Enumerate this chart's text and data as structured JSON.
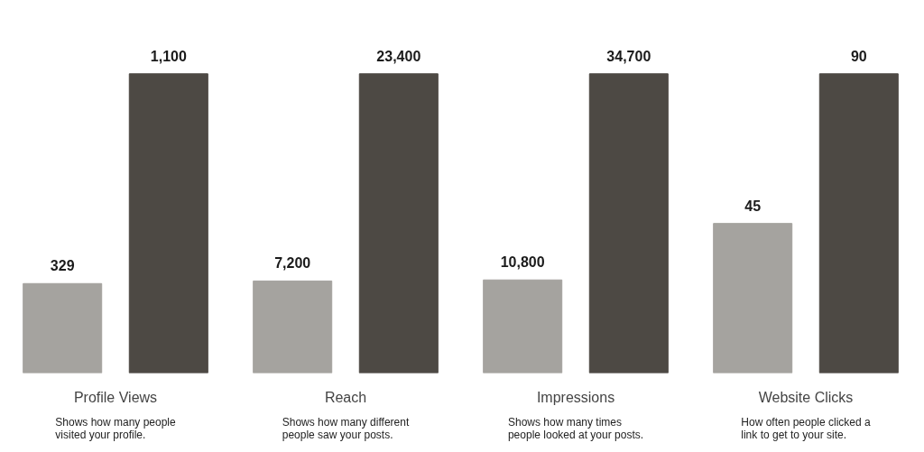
{
  "chart_data": [
    {
      "type": "bar",
      "xlabel": "Profile Views",
      "categories": [
        null,
        null
      ],
      "values": [
        329,
        1100
      ],
      "value_labels": [
        "329",
        "1,100"
      ],
      "colors": [
        "#a5a39f",
        "#4d4944"
      ],
      "tick_labels": false,
      "annotations": [
        "Shows how many people\nvisited your profile."
      ]
    },
    {
      "type": "bar",
      "xlabel": "Reach",
      "categories": [
        null,
        null
      ],
      "values": [
        7200,
        23400
      ],
      "value_labels": [
        "7,200",
        "23,400"
      ],
      "colors": [
        "#a5a39f",
        "#4d4944"
      ],
      "tick_labels": false,
      "annotations": [
        "Shows how many different\npeople saw your posts."
      ]
    },
    {
      "type": "bar",
      "xlabel": "Impressions",
      "categories": [
        null,
        null
      ],
      "values": [
        10800,
        34700
      ],
      "value_labels": [
        "10,800",
        "34,700"
      ],
      "colors": [
        "#a5a39f",
        "#4d4944"
      ],
      "tick_labels": false,
      "annotations": [
        "Shows how many times\npeople looked at your posts."
      ]
    },
    {
      "type": "bar",
      "xlabel": "Website Clicks",
      "categories": [
        null,
        null
      ],
      "values": [
        45,
        90
      ],
      "value_labels": [
        "45",
        "90"
      ],
      "colors": [
        "#a5a39f",
        "#4d4944"
      ],
      "tick_labels": false,
      "annotations": [
        "How often people clicked a\nlink to get to your site."
      ]
    }
  ]
}
